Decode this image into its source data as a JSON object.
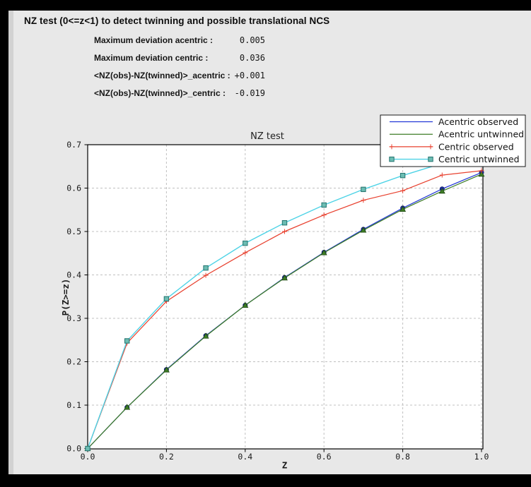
{
  "header": {
    "title": "NZ test (0<=z<1) to detect twinning and possible translational NCS"
  },
  "stats": {
    "rows": [
      {
        "label": "Maximum deviation acentric :",
        "value": "0.005"
      },
      {
        "label": "Maximum deviation centric :",
        "value": "0.036"
      },
      {
        "label": "<NZ(obs)-NZ(twinned)>_acentric :",
        "value": "+0.001"
      },
      {
        "label": "<NZ(obs)-NZ(twinned)>_centric :",
        "value": "-0.019"
      }
    ]
  },
  "chart_data": {
    "type": "line",
    "title": "NZ test",
    "xlabel": "Z",
    "ylabel": "P(Z>=z)",
    "xlim": [
      0.0,
      1.0
    ],
    "ylim": [
      0.0,
      0.7
    ],
    "x_ticks": [
      0.0,
      0.2,
      0.4,
      0.6,
      0.8,
      1.0
    ],
    "y_ticks": [
      0.0,
      0.1,
      0.2,
      0.3,
      0.4,
      0.5,
      0.6,
      0.7
    ],
    "grid": true,
    "legend_position": "upper right",
    "x": [
      0.0,
      0.1,
      0.2,
      0.3,
      0.4,
      0.5,
      0.6,
      0.7,
      0.8,
      0.9,
      1.0
    ],
    "series": [
      {
        "name": "Acentric observed",
        "color": "#2338d6",
        "marker": "circle",
        "marker_fill": "#1c2da8",
        "marker_edge": "#111e66",
        "values": [
          0.0,
          0.095,
          0.182,
          0.26,
          0.33,
          0.394,
          0.452,
          0.505,
          0.554,
          0.598,
          0.636
        ]
      },
      {
        "name": "Acentric untwinned",
        "color": "#3e7d26",
        "marker": "triangle",
        "marker_fill": "#3e7d26",
        "marker_edge": "#1d4711",
        "values": [
          0.0,
          0.095,
          0.181,
          0.259,
          0.33,
          0.393,
          0.451,
          0.503,
          0.551,
          0.593,
          0.632
        ]
      },
      {
        "name": "Centric observed",
        "color": "#e8412f",
        "marker": "plus",
        "marker_fill": "#e8412f",
        "marker_edge": "#e8412f",
        "values": [
          0.0,
          0.243,
          0.339,
          0.399,
          0.451,
          0.5,
          0.538,
          0.572,
          0.594,
          0.63,
          0.64
        ]
      },
      {
        "name": "Centric untwinned",
        "color": "#4ed3e6",
        "marker": "square",
        "marker_fill": "#6cbcb2",
        "marker_edge": "#23736e",
        "values": [
          0.0,
          0.248,
          0.345,
          0.416,
          0.473,
          0.52,
          0.561,
          0.597,
          0.629,
          0.657,
          0.683
        ]
      }
    ]
  },
  "colors": {
    "panel_bg": "#e8e8e8",
    "frame": "#000000",
    "plot_bg": "#ffffff",
    "grid": "#c0c0c0",
    "axis": "#000000",
    "text": "#1a1a1a"
  }
}
